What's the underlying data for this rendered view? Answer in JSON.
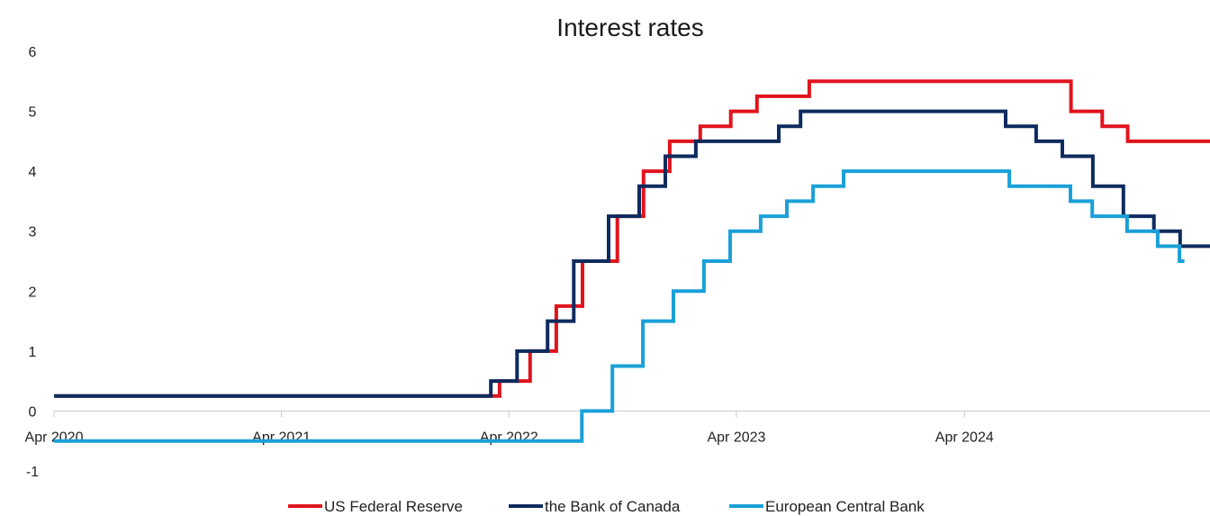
{
  "chart_data": {
    "type": "line",
    "title": "Interest rates",
    "xlabel": "",
    "ylabel": "",
    "x_tick_labels": [
      "Apr 2020",
      "Apr 2021",
      "Apr 2022",
      "Apr 2023",
      "Apr 2024"
    ],
    "x_range": [
      "2020-04-01",
      "2025-04-30"
    ],
    "y_ticks": [
      6,
      5,
      4,
      3,
      2,
      1,
      0,
      -1
    ],
    "ylim": [
      -1,
      6
    ],
    "grid": false,
    "legend_position": "bottom",
    "series": [
      {
        "name": "US Federal Reserve",
        "color": "#e0141e",
        "step_points": [
          [
            "2020-04-01",
            0.25
          ],
          [
            "2022-03-17",
            0.5
          ],
          [
            "2022-05-05",
            1.0
          ],
          [
            "2022-06-16",
            1.75
          ],
          [
            "2022-07-28",
            2.5
          ],
          [
            "2022-09-22",
            3.25
          ],
          [
            "2022-11-03",
            4.0
          ],
          [
            "2022-12-15",
            4.5
          ],
          [
            "2023-02-02",
            4.75
          ],
          [
            "2023-03-23",
            5.0
          ],
          [
            "2023-05-04",
            5.25
          ],
          [
            "2023-07-27",
            5.5
          ],
          [
            "2024-09-19",
            5.0
          ],
          [
            "2024-11-08",
            4.75
          ],
          [
            "2024-12-19",
            4.5
          ],
          [
            "2025-04-30",
            4.5
          ]
        ]
      },
      {
        "name": "the Bank of Canada",
        "color": "#0d2b5e",
        "step_points": [
          [
            "2020-04-01",
            0.25
          ],
          [
            "2022-03-03",
            0.5
          ],
          [
            "2022-04-14",
            1.0
          ],
          [
            "2022-06-02",
            1.5
          ],
          [
            "2022-07-14",
            2.5
          ],
          [
            "2022-09-08",
            3.25
          ],
          [
            "2022-10-27",
            3.75
          ],
          [
            "2022-12-08",
            4.25
          ],
          [
            "2023-01-26",
            4.5
          ],
          [
            "2023-06-08",
            4.75
          ],
          [
            "2023-07-13",
            5.0
          ],
          [
            "2024-06-06",
            4.75
          ],
          [
            "2024-07-25",
            4.5
          ],
          [
            "2024-09-05",
            4.25
          ],
          [
            "2024-10-24",
            3.75
          ],
          [
            "2024-12-12",
            3.25
          ],
          [
            "2025-01-30",
            3.0
          ],
          [
            "2025-03-13",
            2.75
          ],
          [
            "2025-04-30",
            2.75
          ]
        ]
      },
      {
        "name": "European Central Bank",
        "color": "#1aa0d8",
        "step_points": [
          [
            "2020-04-01",
            -0.5
          ],
          [
            "2022-07-27",
            0.0
          ],
          [
            "2022-09-14",
            0.75
          ],
          [
            "2022-11-02",
            1.5
          ],
          [
            "2022-12-21",
            2.0
          ],
          [
            "2023-02-08",
            2.5
          ],
          [
            "2023-03-22",
            3.0
          ],
          [
            "2023-05-10",
            3.25
          ],
          [
            "2023-06-21",
            3.5
          ],
          [
            "2023-08-02",
            3.75
          ],
          [
            "2023-09-20",
            4.0
          ],
          [
            "2024-06-12",
            3.75
          ],
          [
            "2024-09-18",
            3.5
          ],
          [
            "2024-10-23",
            3.25
          ],
          [
            "2024-12-18",
            3.0
          ],
          [
            "2025-02-05",
            2.75
          ],
          [
            "2025-03-12",
            2.5
          ],
          [
            "2025-03-20",
            2.5
          ]
        ]
      }
    ]
  }
}
